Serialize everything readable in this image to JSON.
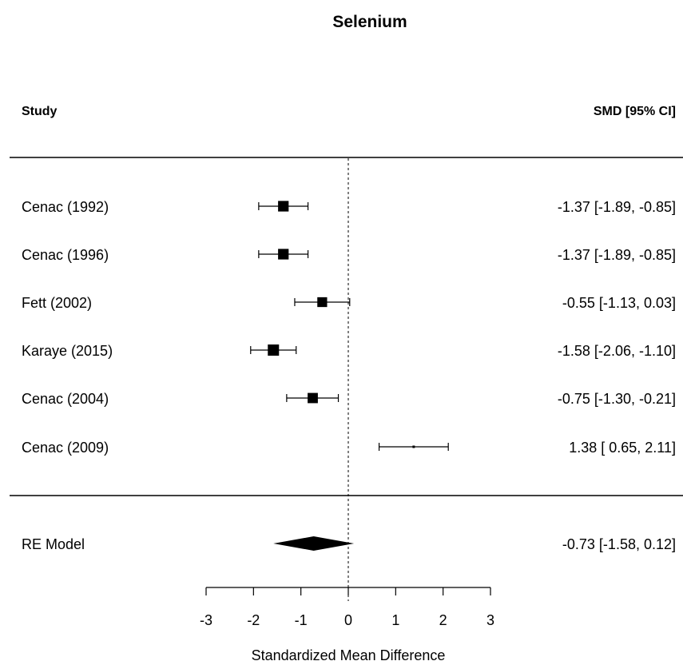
{
  "chart_data": {
    "type": "forest",
    "title": "Selenium",
    "study_header": "Study",
    "effect_header": "SMD [95% CI]",
    "xlabel": "Standardized Mean Difference",
    "xlim": [
      -3,
      3
    ],
    "xticks": [
      -3,
      -2,
      -1,
      0,
      1,
      2,
      3
    ],
    "reference_line": 0,
    "studies": [
      {
        "name": "Cenac (1992)",
        "estimate": -1.37,
        "ci_low": -1.89,
        "ci_high": -0.85,
        "label": "-1.37 [-1.89, -0.85]"
      },
      {
        "name": "Cenac (1996)",
        "estimate": -1.37,
        "ci_low": -1.89,
        "ci_high": -0.85,
        "label": "-1.37 [-1.89, -0.85]"
      },
      {
        "name": "Fett (2002)",
        "estimate": -0.55,
        "ci_low": -1.13,
        "ci_high": 0.03,
        "label": "-0.55 [-1.13,  0.03]"
      },
      {
        "name": "Karaye (2015)",
        "estimate": -1.58,
        "ci_low": -2.06,
        "ci_high": -1.1,
        "label": "-1.58 [-2.06, -1.10]"
      },
      {
        "name": "Cenac (2004)",
        "estimate": -0.75,
        "ci_low": -1.3,
        "ci_high": -0.21,
        "label": "-0.75 [-1.30, -0.21]"
      },
      {
        "name": "Cenac (2009)",
        "estimate": 1.38,
        "ci_low": 0.65,
        "ci_high": 2.11,
        "label": "1.38 [ 0.65,  2.11]"
      }
    ],
    "summary": {
      "name": "RE Model",
      "estimate": -0.73,
      "ci_low": -1.58,
      "ci_high": 0.12,
      "label": "-0.73 [-1.58,  0.12]"
    }
  }
}
